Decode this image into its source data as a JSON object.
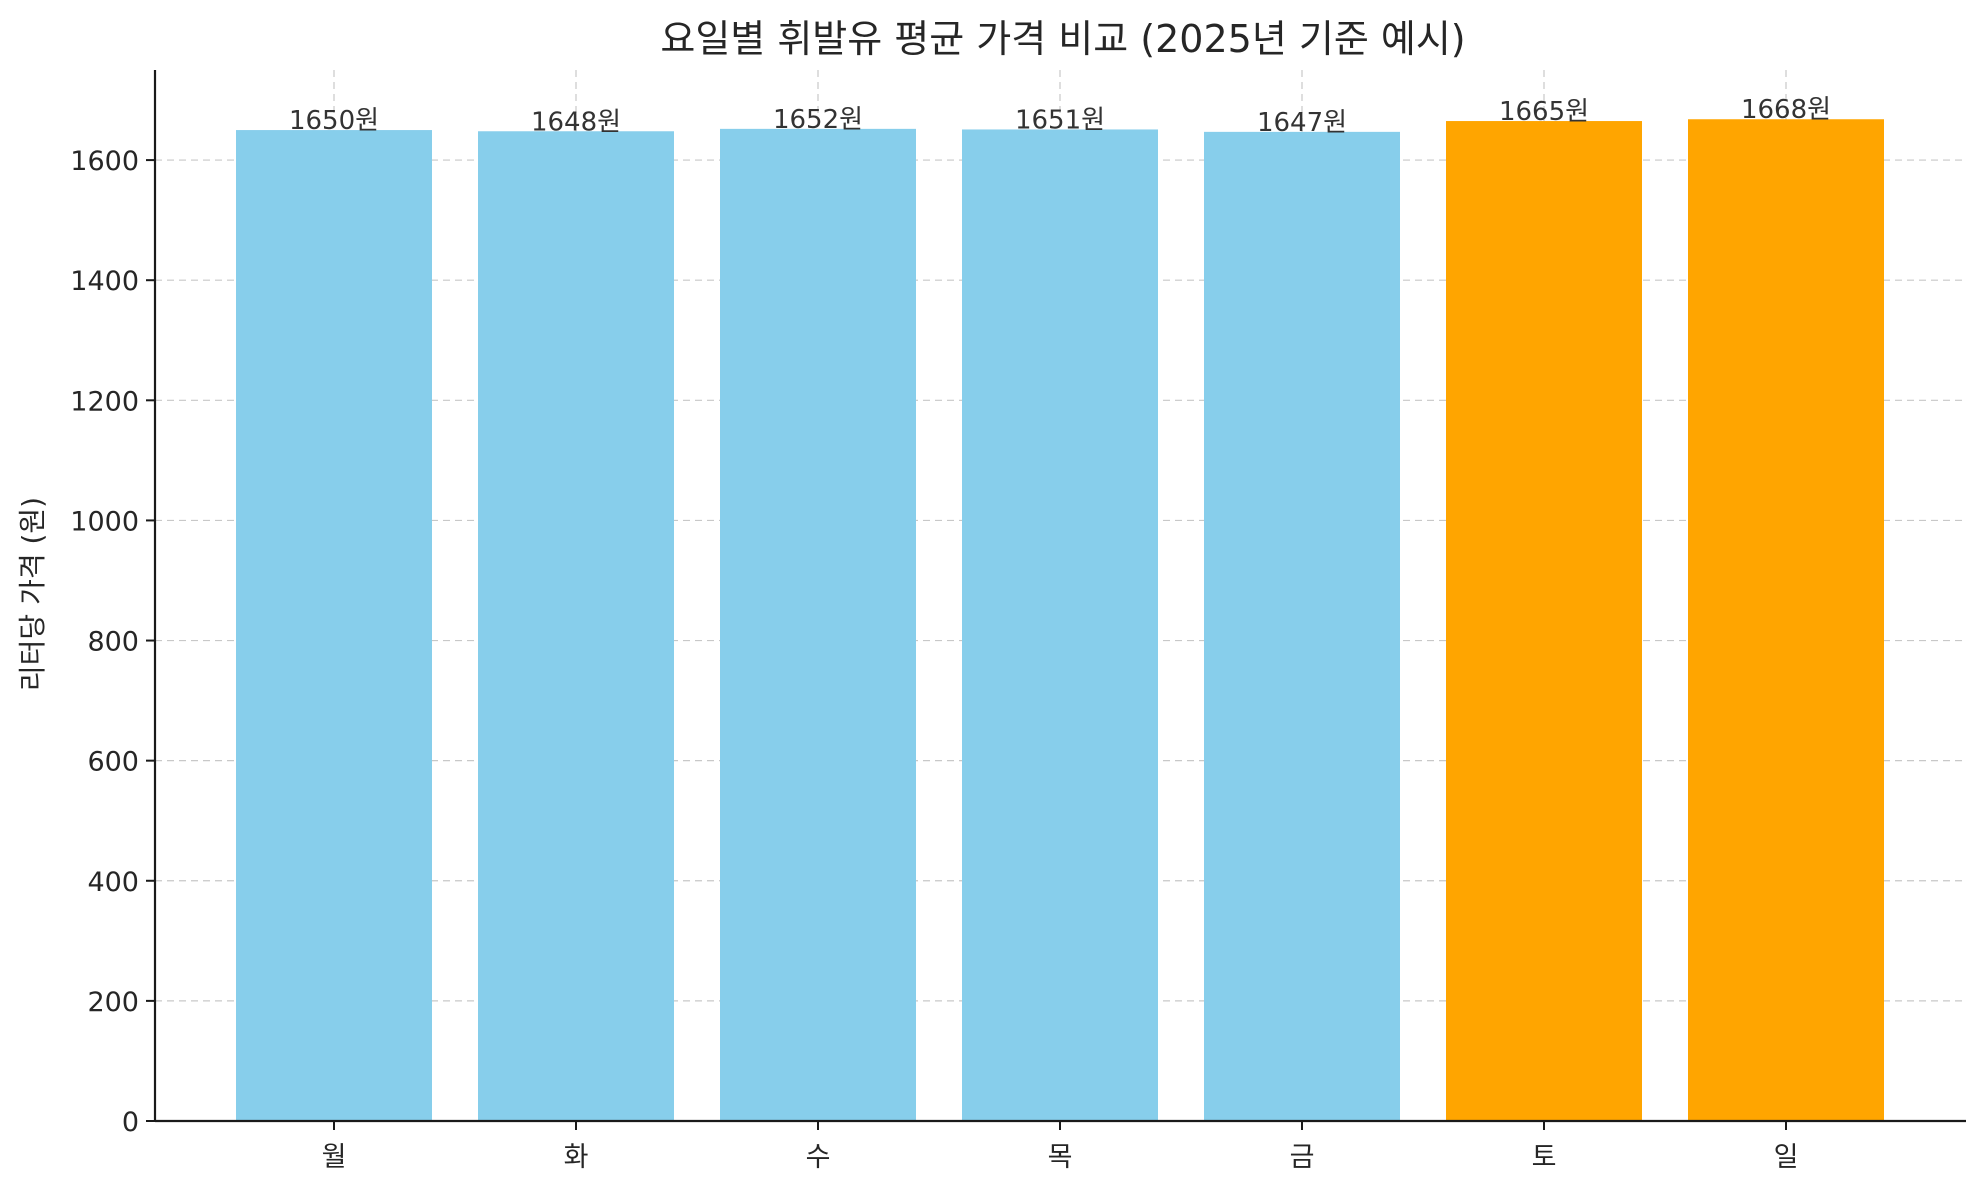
{
  "chart_data": {
    "type": "bar",
    "title": "요일별 휘발유 평균 가격 비교 (2025년 기준 예시)",
    "xlabel": "",
    "ylabel": "리터당 가격 (원)",
    "categories": [
      "월",
      "화",
      "수",
      "목",
      "금",
      "토",
      "일"
    ],
    "values": [
      1650,
      1648,
      1652,
      1651,
      1647,
      1665,
      1668
    ],
    "data_labels": [
      "1650원",
      "1648원",
      "1652원",
      "1651원",
      "1647원",
      "1665원",
      "1668원"
    ],
    "colors": [
      "#87CEEB",
      "#87CEEB",
      "#87CEEB",
      "#87CEEB",
      "#87CEEB",
      "#FFA500",
      "#FFA500"
    ],
    "ylim": [
      0,
      1750
    ],
    "yticks": [
      0,
      200,
      400,
      600,
      800,
      1000,
      1200,
      1400,
      1600
    ],
    "grid": true
  }
}
